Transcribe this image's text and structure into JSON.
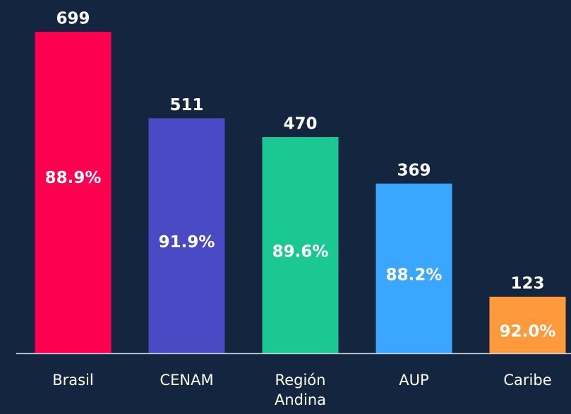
{
  "chart_data": {
    "type": "bar",
    "categories": [
      "Brasil",
      "CENAM",
      "Región Andina",
      "AUP",
      "Caribe"
    ],
    "values": [
      699,
      511,
      470,
      369,
      123
    ],
    "percentages": [
      88.9,
      91.9,
      89.6,
      88.2,
      92.0
    ],
    "percentage_labels": [
      "88.9%",
      "91.9%",
      "89.6%",
      "88.2%",
      "92.0%"
    ],
    "colors": [
      "#ff0050",
      "#4a4bc4",
      "#1cc891",
      "#3aa6ff",
      "#ff9a3c"
    ]
  }
}
